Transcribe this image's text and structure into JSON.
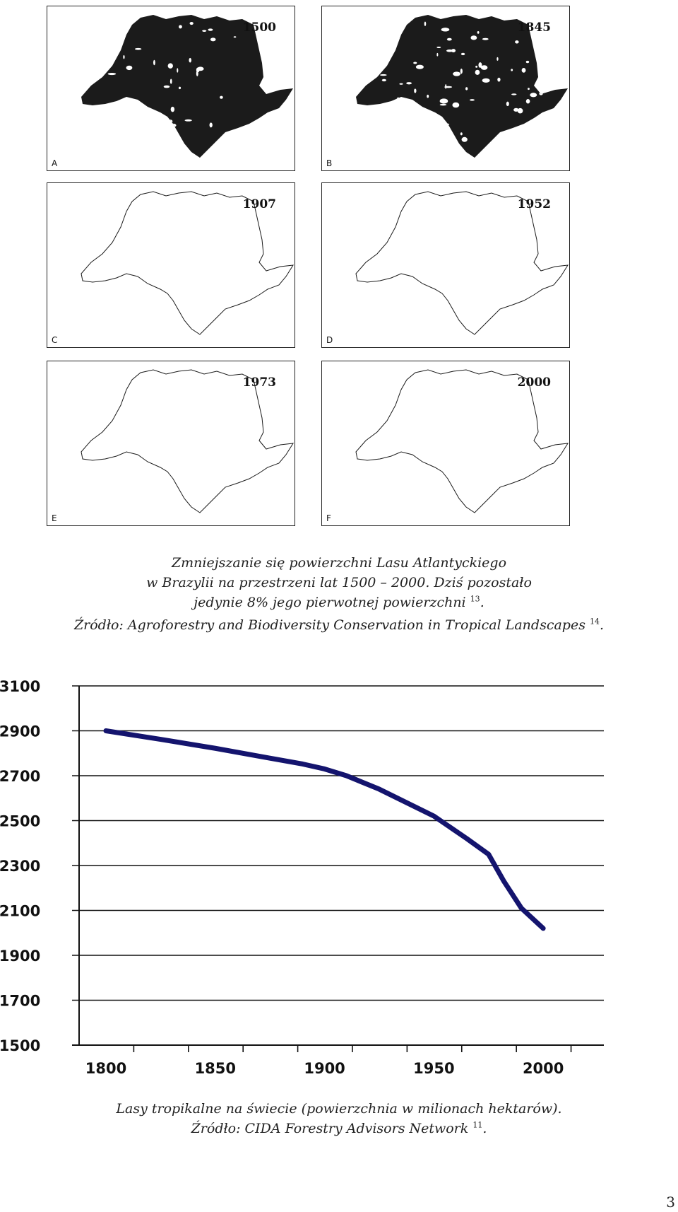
{
  "map_panels": [
    {
      "year": "1500",
      "letter": "A",
      "coverage": "full"
    },
    {
      "year": "1845",
      "letter": "B",
      "coverage": "near-full"
    },
    {
      "year": "1907",
      "letter": "C",
      "coverage": "partial"
    },
    {
      "year": "1952",
      "letter": "D",
      "coverage": "fragmented"
    },
    {
      "year": "1973",
      "letter": "E",
      "coverage": "sparse"
    },
    {
      "year": "2000",
      "letter": "F",
      "coverage": "minimal"
    }
  ],
  "caption_top": {
    "line1": "Zmniejszanie się powierzchni Lasu Atlantyckiego",
    "line2": "w Brazylii na przestrzeni lat 1500 – 2000. Dziś pozostało",
    "line3": "jedynie 8% jego pierwotnej powierzchni",
    "line3_ref": "13",
    "line3_end": ".",
    "line4": "Źródło: Agroforestry and Biodiversity Conservation in Tropical Landscapes",
    "line4_ref": "14",
    "line4_end": "."
  },
  "chart_data": {
    "type": "line",
    "title": "",
    "xlabel": "",
    "ylabel": "",
    "x_ticks": [
      "1800",
      "1850",
      "1900",
      "1950",
      "2000"
    ],
    "y_ticks": [
      "3100",
      "2900",
      "2700",
      "2500",
      "2300",
      "2100",
      "1900",
      "1700",
      "1500"
    ],
    "xlim": [
      1800,
      2040
    ],
    "ylim": [
      1500,
      3100
    ],
    "grid": "horizontal",
    "line_color": "#14146e",
    "series": [
      {
        "x": [
          1800,
          1825,
          1850,
          1875,
          1890,
          1900,
          1910,
          1925,
          1950,
          1965,
          1975,
          1982,
          1990,
          2000
        ],
        "y": [
          2900,
          2862,
          2822,
          2778,
          2752,
          2730,
          2700,
          2640,
          2520,
          2420,
          2350,
          2230,
          2110,
          2020
        ]
      }
    ]
  },
  "caption_bottom": {
    "line1": "Lasy tropikalne na świecie  (powierzchnia w milionach hektarów).",
    "line2": "Źródło: CIDA Forestry Advisors Network",
    "line2_ref": "11",
    "line2_end": "."
  },
  "page_number": "3"
}
